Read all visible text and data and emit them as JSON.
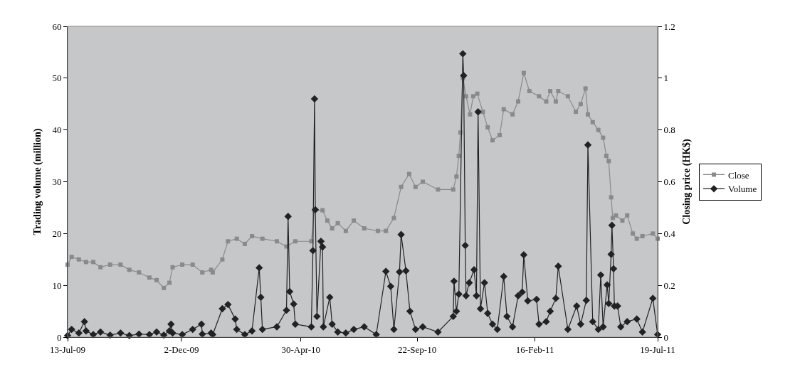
{
  "chart_data": {
    "type": "line",
    "ylabel": "Trading volume (million)",
    "y2label": "Closing price (HK$)",
    "xlim": [
      "2009-07-13",
      "2011-07-19"
    ],
    "xticks": [
      {
        "value": "2009-07-13",
        "label": "13-Jul-09"
      },
      {
        "value": "2009-12-02",
        "label": "2-Dec-09"
      },
      {
        "value": "2010-04-30",
        "label": "30-Apr-10"
      },
      {
        "value": "2010-09-22",
        "label": "22-Sep-10"
      },
      {
        "value": "2011-02-16",
        "label": "16-Feb-11"
      },
      {
        "value": "2011-07-19",
        "label": "19-Jul-11"
      }
    ],
    "ylim": [
      0,
      60
    ],
    "yticks": [
      0,
      10,
      20,
      30,
      40,
      50,
      60
    ],
    "y2lim": [
      0,
      1.2
    ],
    "y2ticks": [
      0,
      0.2,
      0.4,
      0.6,
      0.8,
      1,
      1.2
    ],
    "grid": false,
    "legend": "right",
    "line_style": "solid",
    "series": [
      {
        "name": "Close",
        "color": "#8a8a8a",
        "axis": "y2",
        "marker": "square",
        "x": [
          "2009-07-13",
          "2009-07-18",
          "2009-07-27",
          "2009-08-05",
          "2009-08-14",
          "2009-08-23",
          "2009-09-04",
          "2009-09-17",
          "2009-09-28",
          "2009-10-10",
          "2009-10-23",
          "2009-11-01",
          "2009-11-10",
          "2009-11-17",
          "2009-11-21",
          "2009-12-03",
          "2009-12-16",
          "2009-12-28",
          "2010-01-08",
          "2010-01-10",
          "2010-01-22",
          "2010-01-29",
          "2010-02-09",
          "2010-02-19",
          "2010-02-28",
          "2010-03-13",
          "2010-03-31",
          "2010-04-12",
          "2010-04-23",
          "2010-05-13",
          "2010-05-17",
          "2010-05-27",
          "2010-06-02",
          "2010-06-08",
          "2010-06-15",
          "2010-06-25",
          "2010-07-05",
          "2010-07-18",
          "2010-08-04",
          "2010-08-14",
          "2010-08-24",
          "2010-09-02",
          "2010-09-12",
          "2010-09-20",
          "2010-09-29",
          "2010-10-18",
          "2010-11-06",
          "2010-11-10",
          "2010-11-13",
          "2010-11-15",
          "2010-11-18",
          "2010-11-22",
          "2010-11-27",
          "2010-12-01",
          "2010-12-06",
          "2010-12-13",
          "2010-12-19",
          "2010-12-25",
          "2011-01-03",
          "2011-01-08",
          "2011-01-19",
          "2011-01-26",
          "2011-02-02",
          "2011-02-09",
          "2011-02-21",
          "2011-03-02",
          "2011-03-07",
          "2011-03-14",
          "2011-03-17",
          "2011-03-29",
          "2011-04-08",
          "2011-04-14",
          "2011-04-20",
          "2011-04-23",
          "2011-04-29",
          "2011-05-06",
          "2011-05-12",
          "2011-05-16",
          "2011-05-19",
          "2011-05-22",
          "2011-05-24",
          "2011-05-28",
          "2011-06-05",
          "2011-06-11",
          "2011-06-18",
          "2011-06-23",
          "2011-06-30",
          "2011-07-13",
          "2011-07-19"
        ],
        "values": [
          0.28,
          0.31,
          0.3,
          0.29,
          0.29,
          0.27,
          0.28,
          0.28,
          0.26,
          0.25,
          0.23,
          0.22,
          0.19,
          0.21,
          0.27,
          0.28,
          0.28,
          0.25,
          0.26,
          0.25,
          0.3,
          0.37,
          0.38,
          0.36,
          0.39,
          0.38,
          0.37,
          0.35,
          0.37,
          0.37,
          0.49,
          0.49,
          0.45,
          0.42,
          0.44,
          0.41,
          0.45,
          0.42,
          0.41,
          0.41,
          0.46,
          0.58,
          0.63,
          0.58,
          0.6,
          0.57,
          0.57,
          0.62,
          0.7,
          0.79,
          1,
          0.93,
          0.86,
          0.93,
          0.94,
          0.87,
          0.81,
          0.76,
          0.78,
          0.88,
          0.86,
          0.91,
          1.02,
          0.95,
          0.93,
          0.91,
          0.95,
          0.91,
          0.95,
          0.93,
          0.87,
          0.9,
          0.96,
          0.86,
          0.83,
          0.8,
          0.77,
          0.7,
          0.68,
          0.54,
          0.46,
          0.47,
          0.45,
          0.47,
          0.4,
          0.38,
          0.39,
          0.4,
          0.38
        ]
      },
      {
        "name": "Volume",
        "color": "#222222",
        "axis": "y",
        "marker": "diamond",
        "x": [
          "2009-07-13",
          "2009-07-18",
          "2009-07-27",
          "2009-08-03",
          "2009-08-05",
          "2009-08-14",
          "2009-08-23",
          "2009-09-04",
          "2009-09-17",
          "2009-09-28",
          "2009-10-10",
          "2009-10-23",
          "2009-11-01",
          "2009-11-10",
          "2009-11-17",
          "2009-11-19",
          "2009-11-21",
          "2009-12-03",
          "2009-12-16",
          "2009-12-27",
          "2009-12-28",
          "2010-01-08",
          "2010-01-10",
          "2010-01-22",
          "2010-01-29",
          "2010-02-07",
          "2010-02-09",
          "2010-02-19",
          "2010-02-28",
          "2010-03-09",
          "2010-03-11",
          "2010-03-13",
          "2010-03-31",
          "2010-04-12",
          "2010-04-14",
          "2010-04-16",
          "2010-04-21",
          "2010-04-23",
          "2010-05-13",
          "2010-05-15",
          "2010-05-17",
          "2010-05-18",
          "2010-05-20",
          "2010-05-25",
          "2010-05-27",
          "2010-05-28",
          "2010-06-05",
          "2010-06-08",
          "2010-06-15",
          "2010-06-25",
          "2010-07-05",
          "2010-07-18",
          "2010-08-02",
          "2010-08-14",
          "2010-08-20",
          "2010-08-24",
          "2010-08-31",
          "2010-09-02",
          "2010-09-08",
          "2010-09-13",
          "2010-09-20",
          "2010-09-29",
          "2010-10-18",
          "2010-11-06",
          "2010-11-07",
          "2010-11-10",
          "2010-11-13",
          "2010-11-18",
          "2010-11-19",
          "2010-11-21",
          "2010-11-22",
          "2010-11-26",
          "2010-12-02",
          "2010-12-05",
          "2010-12-07",
          "2010-12-10",
          "2010-12-15",
          "2010-12-19",
          "2010-12-25",
          "2010-12-31",
          "2011-01-08",
          "2011-01-12",
          "2011-01-19",
          "2011-01-26",
          "2011-01-31",
          "2011-02-02",
          "2011-02-07",
          "2011-02-18",
          "2011-02-21",
          "2011-03-02",
          "2011-03-07",
          "2011-03-14",
          "2011-03-17",
          "2011-03-29",
          "2011-04-09",
          "2011-04-14",
          "2011-04-21",
          "2011-04-23",
          "2011-04-29",
          "2011-05-06",
          "2011-05-09",
          "2011-05-12",
          "2011-05-17",
          "2011-05-19",
          "2011-05-22",
          "2011-05-23",
          "2011-05-25",
          "2011-05-26",
          "2011-05-30",
          "2011-06-03",
          "2011-06-11",
          "2011-06-23",
          "2011-06-30",
          "2011-07-13",
          "2011-07-19"
        ],
        "values": [
          0.3,
          1.5,
          0.8,
          3,
          1.2,
          0.5,
          1,
          0.4,
          0.8,
          0.3,
          0.6,
          0.5,
          1,
          0.4,
          1.2,
          2.5,
          0.8,
          0.5,
          1.5,
          2.5,
          0.6,
          0.8,
          0.5,
          5.5,
          6.3,
          3.5,
          1.5,
          0.5,
          1.2,
          13.4,
          7.7,
          1.5,
          2,
          5.2,
          23.3,
          8.8,
          6.4,
          2.5,
          2,
          16.7,
          46,
          24.6,
          4,
          18.5,
          17.4,
          2,
          7.7,
          2.5,
          1,
          0.8,
          1.5,
          2,
          0.5,
          12.7,
          9.8,
          1.5,
          12.6,
          19.8,
          12.8,
          5,
          1.5,
          2,
          1,
          4,
          10.8,
          5,
          8.3,
          54.7,
          50.5,
          17.7,
          8,
          10.5,
          13,
          8,
          43.5,
          5.5,
          10.5,
          4.6,
          2.5,
          1.5,
          11.7,
          4,
          2,
          8,
          8.7,
          15.9,
          7,
          7.3,
          2.5,
          3,
          5,
          7.5,
          13.7,
          1.5,
          6,
          2.5,
          7.1,
          37.1,
          3,
          1.5,
          12,
          2,
          10.1,
          6.5,
          16,
          21.6,
          13.2,
          6,
          6,
          2,
          3,
          3.5,
          1,
          7.5,
          0.5
        ]
      }
    ]
  }
}
